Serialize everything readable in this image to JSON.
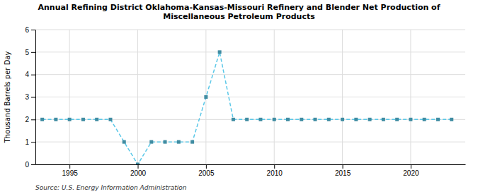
{
  "chart_data": {
    "type": "line",
    "title": "Annual Refining District Oklahoma-Kansas-Missouri Refinery and Blender Net Production of\nMiscellaneous Petroleum Products",
    "ylabel": "Thousand Barrels per Day",
    "source": "Source: U.S. Energy Information Administration",
    "color": "#5bc8e8",
    "marker": "square",
    "line_style": "dashed",
    "grid": true,
    "xlim": [
      1992.5,
      2024
    ],
    "ylim": [
      0,
      6
    ],
    "xticks": [
      1995,
      2000,
      2005,
      2010,
      2015,
      2020
    ],
    "yticks": [
      0,
      1,
      2,
      3,
      4,
      5,
      6
    ],
    "x": [
      1993,
      1994,
      1995,
      1996,
      1997,
      1998,
      1999,
      2000,
      2001,
      2002,
      2003,
      2004,
      2005,
      2006,
      2007,
      2008,
      2009,
      2010,
      2011,
      2012,
      2013,
      2014,
      2015,
      2016,
      2017,
      2018,
      2019,
      2020,
      2021,
      2022,
      2023
    ],
    "values": [
      2,
      2,
      2,
      2,
      2,
      2,
      1,
      0,
      1,
      1,
      1,
      1,
      3,
      5,
      2,
      2,
      2,
      2,
      2,
      2,
      2,
      2,
      2,
      2,
      2,
      2,
      2,
      2,
      2,
      2,
      2
    ]
  }
}
